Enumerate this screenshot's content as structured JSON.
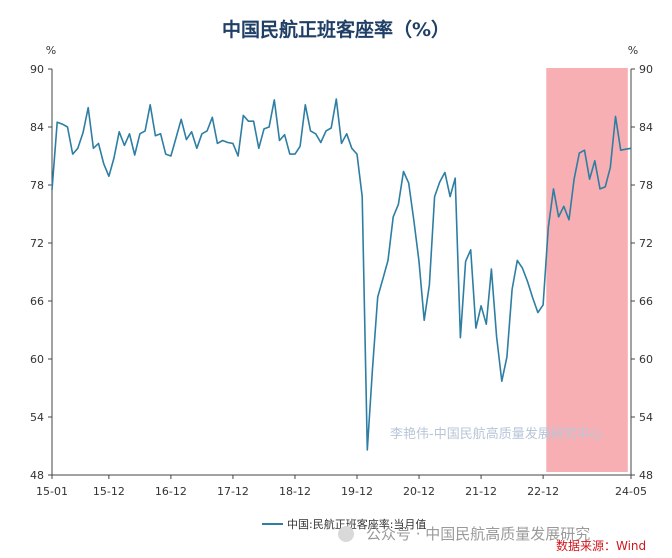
{
  "chart_data": {
    "type": "line",
    "title": "中国民航正班客座率（%）",
    "y_unit_left": "%",
    "y_unit_right": "%",
    "ylim": [
      48,
      90
    ],
    "yticks": [
      48,
      54,
      60,
      66,
      72,
      78,
      84,
      90
    ],
    "ytick_labels": [
      "48",
      "54",
      "60",
      "66",
      "72",
      "78",
      "84",
      "90"
    ],
    "xtick_labels": [
      "15-01",
      "15-12",
      "16-12",
      "17-12",
      "18-12",
      "19-12",
      "20-12",
      "21-12",
      "22-12",
      "24-05"
    ],
    "xtick_indices": [
      0,
      11,
      23,
      35,
      47,
      59,
      71,
      83,
      95,
      112
    ],
    "grid": false,
    "legend_position": "bottom",
    "highlight_region": {
      "start_index": 96,
      "end_index": 111,
      "color": "#f7a1a6"
    },
    "series": [
      {
        "name": "中国:民航正班客座率:当月值",
        "color": "#2e7ea3",
        "values": [
          77.5,
          84.5,
          84.3,
          84.0,
          81.2,
          81.8,
          83.4,
          86.0,
          81.8,
          82.3,
          80.2,
          78.9,
          80.8,
          83.5,
          82.1,
          83.3,
          81.1,
          83.3,
          83.6,
          86.3,
          83.1,
          83.3,
          81.2,
          81.0,
          82.9,
          84.8,
          82.7,
          83.5,
          81.8,
          83.3,
          83.6,
          85.0,
          82.3,
          82.6,
          82.4,
          82.3,
          81.0,
          85.2,
          84.6,
          84.6,
          81.8,
          83.8,
          84.0,
          86.8,
          82.6,
          83.2,
          81.2,
          81.2,
          82.0,
          86.3,
          83.6,
          83.3,
          82.4,
          83.6,
          83.9,
          86.9,
          82.3,
          83.3,
          81.8,
          81.2,
          76.8,
          50.6,
          59.0,
          66.4,
          68.3,
          70.2,
          74.7,
          76.0,
          79.4,
          78.2,
          74.3,
          70.1,
          64.0,
          67.7,
          76.8,
          78.3,
          79.3,
          76.8,
          78.7,
          62.2,
          70.1,
          71.3,
          63.2,
          65.5,
          63.6,
          69.3,
          62.3,
          57.7,
          60.2,
          67.2,
          70.2,
          69.4,
          68.0,
          66.3,
          64.8,
          65.6,
          73.6,
          77.6,
          74.7,
          75.8,
          74.4,
          78.6,
          81.3,
          81.6,
          78.6,
          80.5,
          77.6,
          77.8,
          79.8,
          85.1,
          81.6,
          81.7,
          81.8
        ]
      }
    ]
  },
  "legend": {
    "label": "中国:民航正班客座率:当月值"
  },
  "watermark": {
    "text": "李艳伟-中国民航高质量发展研究中心"
  },
  "footer": {
    "text": "公众号 · 中国民航高质量发展研究",
    "source": "数据来源：Wind"
  }
}
